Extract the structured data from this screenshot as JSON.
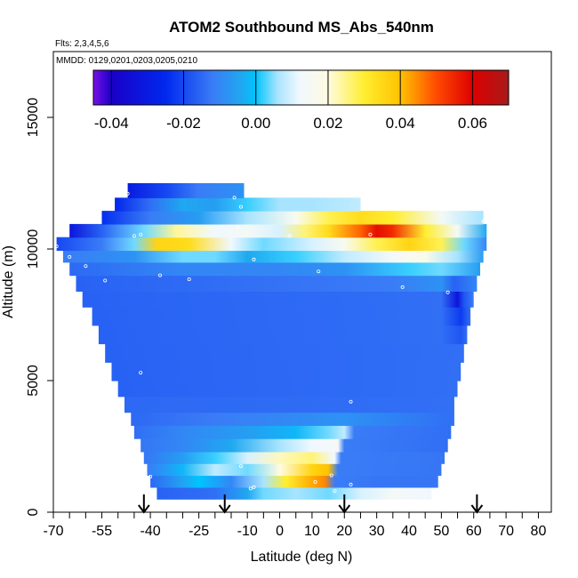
{
  "chart_data": {
    "type": "heatmap",
    "title": "ATOM2 Southbound MS_Abs_540nm",
    "flights_note": "Flts: 2,3,4,5,6",
    "dates_note": "MMDD: 0129,0201,0203,0205,0210",
    "xlabel": "Latitude (deg N)",
    "ylabel": "Altitude (m)",
    "xlim": [
      -70,
      84
    ],
    "ylim": [
      0,
      17500
    ],
    "x_ticks": [
      -70,
      -55,
      -40,
      -25,
      -10,
      0,
      10,
      20,
      30,
      40,
      50,
      60,
      70,
      80
    ],
    "x_minor_ticks": [
      -65,
      -60,
      -50,
      -45,
      -35,
      -30,
      -20,
      -15,
      -5,
      5,
      15,
      25,
      35,
      45,
      55,
      65,
      75
    ],
    "y_ticks": [
      0,
      5000,
      10000,
      15000
    ],
    "colorbar": {
      "min": -0.045,
      "max": 0.07,
      "ticks": [
        -0.04,
        -0.02,
        0.0,
        0.02,
        0.04,
        0.06
      ],
      "tick_labels": [
        "-0.04",
        "-0.02",
        "0.00",
        "0.02",
        "0.04",
        "0.06"
      ],
      "stops": [
        {
          "value": -0.045,
          "color": "#7a10e8"
        },
        {
          "value": -0.04,
          "color": "#1a00c8"
        },
        {
          "value": -0.025,
          "color": "#0028ee"
        },
        {
          "value": -0.012,
          "color": "#3a7cf6"
        },
        {
          "value": -0.004,
          "color": "#1fa8f0"
        },
        {
          "value": 0.0,
          "color": "#00c4ff"
        },
        {
          "value": 0.006,
          "color": "#a8e4ff"
        },
        {
          "value": 0.012,
          "color": "#f0f8ff"
        },
        {
          "value": 0.02,
          "color": "#fffbe0"
        },
        {
          "value": 0.03,
          "color": "#ffee30"
        },
        {
          "value": 0.04,
          "color": "#ffc200"
        },
        {
          "value": 0.05,
          "color": "#ff4a00"
        },
        {
          "value": 0.06,
          "color": "#dd0000"
        },
        {
          "value": 0.07,
          "color": "#a81a1a"
        }
      ]
    },
    "background_value": -0.014,
    "arrows_lat": [
      -42,
      -17,
      20,
      61
    ],
    "bands": [
      {
        "alt_low": 0,
        "alt_high": 500,
        "lat_min": 0,
        "lat_max": 0,
        "segments": []
      },
      {
        "alt_low": 500,
        "alt_high": 950,
        "lat_min": -38,
        "lat_max": 47,
        "segments": [
          {
            "lat": -38,
            "value": -0.016
          },
          {
            "lat": -20,
            "value": -0.014
          },
          {
            "lat": -10,
            "value": -0.004
          },
          {
            "lat": -5,
            "value": 0.004
          },
          {
            "lat": 5,
            "value": 0.006
          },
          {
            "lat": 15,
            "value": 0.004
          },
          {
            "lat": 25,
            "value": 0.01
          },
          {
            "lat": 35,
            "value": 0.014
          },
          {
            "lat": 47,
            "value": 0.012
          }
        ]
      },
      {
        "alt_low": 950,
        "alt_high": 1400,
        "lat_min": -40,
        "lat_max": 49,
        "segments": [
          {
            "lat": -40,
            "value": -0.015
          },
          {
            "lat": -30,
            "value": -0.005
          },
          {
            "lat": -25,
            "value": 0.0
          },
          {
            "lat": -15,
            "value": -0.01
          },
          {
            "lat": -5,
            "value": 0.006
          },
          {
            "lat": 2,
            "value": 0.03
          },
          {
            "lat": 10,
            "value": 0.042
          },
          {
            "lat": 14,
            "value": 0.045
          },
          {
            "lat": 17,
            "value": -0.012
          },
          {
            "lat": 30,
            "value": -0.013
          },
          {
            "lat": 49,
            "value": -0.013
          }
        ]
      },
      {
        "alt_low": 1400,
        "alt_high": 1850,
        "lat_min": -41,
        "lat_max": 50,
        "segments": [
          {
            "lat": -41,
            "value": -0.012
          },
          {
            "lat": -30,
            "value": -0.002
          },
          {
            "lat": -20,
            "value": 0.008
          },
          {
            "lat": -10,
            "value": 0.004
          },
          {
            "lat": 0,
            "value": 0.02
          },
          {
            "lat": 10,
            "value": 0.036
          },
          {
            "lat": 15,
            "value": 0.04
          },
          {
            "lat": 18,
            "value": -0.012
          },
          {
            "lat": 50,
            "value": -0.013
          }
        ]
      },
      {
        "alt_low": 1850,
        "alt_high": 2300,
        "lat_min": -42,
        "lat_max": 51,
        "segments": [
          {
            "lat": -42,
            "value": -0.013
          },
          {
            "lat": -30,
            "value": -0.006
          },
          {
            "lat": -20,
            "value": 0.002
          },
          {
            "lat": -10,
            "value": 0.01
          },
          {
            "lat": 0,
            "value": 0.022
          },
          {
            "lat": 10,
            "value": 0.026
          },
          {
            "lat": 17,
            "value": 0.012
          },
          {
            "lat": 19,
            "value": -0.012
          },
          {
            "lat": 51,
            "value": -0.013
          }
        ]
      },
      {
        "alt_low": 2300,
        "alt_high": 2800,
        "lat_min": -43,
        "lat_max": 52,
        "segments": [
          {
            "lat": -43,
            "value": -0.013
          },
          {
            "lat": -30,
            "value": -0.01
          },
          {
            "lat": -15,
            "value": -0.004
          },
          {
            "lat": 0,
            "value": 0.006
          },
          {
            "lat": 10,
            "value": 0.012
          },
          {
            "lat": 18,
            "value": 0.014
          },
          {
            "lat": 20,
            "value": -0.012
          },
          {
            "lat": 52,
            "value": -0.014
          }
        ]
      },
      {
        "alt_low": 2800,
        "alt_high": 3300,
        "lat_min": -45,
        "lat_max": 53,
        "segments": [
          {
            "lat": -45,
            "value": -0.014
          },
          {
            "lat": -30,
            "value": -0.01
          },
          {
            "lat": -10,
            "value": -0.006
          },
          {
            "lat": 5,
            "value": -0.002
          },
          {
            "lat": 15,
            "value": 0.004
          },
          {
            "lat": 20,
            "value": 0.008
          },
          {
            "lat": 23,
            "value": -0.012
          },
          {
            "lat": 53,
            "value": -0.014
          }
        ]
      },
      {
        "alt_low": 3300,
        "alt_high": 3800,
        "lat_min": -46,
        "lat_max": 54,
        "segments": [
          {
            "lat": -46,
            "value": -0.015
          },
          {
            "lat": -20,
            "value": -0.012
          },
          {
            "lat": 0,
            "value": -0.01
          },
          {
            "lat": 20,
            "value": -0.008
          },
          {
            "lat": 54,
            "value": -0.014
          }
        ]
      },
      {
        "alt_low": 3800,
        "alt_high": 4400,
        "lat_min": -48,
        "lat_max": 54,
        "segments": [
          {
            "lat": -48,
            "value": -0.015
          },
          {
            "lat": 54,
            "value": -0.014
          }
        ]
      },
      {
        "alt_low": 4400,
        "alt_high": 5000,
        "lat_min": -50,
        "lat_max": 55,
        "segments": [
          {
            "lat": -50,
            "value": -0.016
          },
          {
            "lat": 55,
            "value": -0.014
          }
        ]
      },
      {
        "alt_low": 5000,
        "alt_high": 5700,
        "lat_min": -52,
        "lat_max": 56,
        "segments": [
          {
            "lat": -52,
            "value": -0.016
          },
          {
            "lat": 56,
            "value": -0.014
          }
        ]
      },
      {
        "alt_low": 5700,
        "alt_high": 6400,
        "lat_min": -54,
        "lat_max": 57,
        "segments": [
          {
            "lat": -54,
            "value": -0.016
          },
          {
            "lat": 57,
            "value": -0.014
          }
        ]
      },
      {
        "alt_low": 6400,
        "alt_high": 7100,
        "lat_min": -56,
        "lat_max": 58,
        "segments": [
          {
            "lat": -56,
            "value": -0.016
          },
          {
            "lat": 50,
            "value": -0.014
          },
          {
            "lat": 56,
            "value": -0.018
          },
          {
            "lat": 58,
            "value": -0.014
          }
        ]
      },
      {
        "alt_low": 7100,
        "alt_high": 7800,
        "lat_min": -58,
        "lat_max": 59,
        "segments": [
          {
            "lat": -58,
            "value": -0.016
          },
          {
            "lat": 50,
            "value": -0.014
          },
          {
            "lat": 56,
            "value": -0.022
          },
          {
            "lat": 59,
            "value": -0.014
          }
        ]
      },
      {
        "alt_low": 7800,
        "alt_high": 8400,
        "lat_min": -61,
        "lat_max": 60,
        "segments": [
          {
            "lat": -61,
            "value": -0.016
          },
          {
            "lat": 50,
            "value": -0.014
          },
          {
            "lat": 55,
            "value": -0.032
          },
          {
            "lat": 57,
            "value": -0.018
          },
          {
            "lat": 60,
            "value": -0.012
          }
        ]
      },
      {
        "alt_low": 8400,
        "alt_high": 9000,
        "lat_min": -63,
        "lat_max": 61,
        "segments": [
          {
            "lat": -63,
            "value": -0.016
          },
          {
            "lat": 35,
            "value": -0.012
          },
          {
            "lat": 50,
            "value": -0.008
          },
          {
            "lat": 54,
            "value": -0.016
          },
          {
            "lat": 61,
            "value": -0.01
          }
        ]
      },
      {
        "alt_low": 9000,
        "alt_high": 9500,
        "lat_min": -65,
        "lat_max": 62,
        "segments": [
          {
            "lat": -65,
            "value": -0.015
          },
          {
            "lat": -30,
            "value": -0.01
          },
          {
            "lat": 0,
            "value": -0.01
          },
          {
            "lat": 20,
            "value": -0.008
          },
          {
            "lat": 40,
            "value": 0.002
          },
          {
            "lat": 50,
            "value": 0.004
          },
          {
            "lat": 62,
            "value": -0.006
          }
        ]
      },
      {
        "alt_low": 9500,
        "alt_high": 9950,
        "lat_min": -67,
        "lat_max": 63,
        "segments": [
          {
            "lat": -67,
            "value": -0.012
          },
          {
            "lat": -45,
            "value": -0.008
          },
          {
            "lat": -30,
            "value": 0.004
          },
          {
            "lat": -20,
            "value": 0.004
          },
          {
            "lat": -10,
            "value": -0.004
          },
          {
            "lat": 5,
            "value": 0.002
          },
          {
            "lat": 20,
            "value": 0.008
          },
          {
            "lat": 35,
            "value": 0.014
          },
          {
            "lat": 45,
            "value": 0.018
          },
          {
            "lat": 55,
            "value": 0.006
          },
          {
            "lat": 63,
            "value": -0.006
          }
        ]
      },
      {
        "alt_low": 9950,
        "alt_high": 10450,
        "lat_min": -69,
        "lat_max": 64,
        "segments": [
          {
            "lat": -69,
            "value": -0.02
          },
          {
            "lat": -55,
            "value": -0.012
          },
          {
            "lat": -45,
            "value": 0.004
          },
          {
            "lat": -38,
            "value": 0.036
          },
          {
            "lat": -28,
            "value": 0.034
          },
          {
            "lat": -15,
            "value": 0.012
          },
          {
            "lat": -5,
            "value": 0.004
          },
          {
            "lat": 10,
            "value": 0.01
          },
          {
            "lat": 20,
            "value": 0.016
          },
          {
            "lat": 30,
            "value": 0.028
          },
          {
            "lat": 40,
            "value": 0.036
          },
          {
            "lat": 50,
            "value": 0.028
          },
          {
            "lat": 57,
            "value": 0.004
          },
          {
            "lat": 64,
            "value": -0.01
          }
        ]
      },
      {
        "alt_low": 10450,
        "alt_high": 10950,
        "lat_min": -65,
        "lat_max": 64,
        "segments": [
          {
            "lat": -65,
            "value": -0.032
          },
          {
            "lat": -55,
            "value": -0.016
          },
          {
            "lat": -42,
            "value": 0.004
          },
          {
            "lat": -32,
            "value": 0.024
          },
          {
            "lat": -20,
            "value": 0.012
          },
          {
            "lat": -10,
            "value": 0.014
          },
          {
            "lat": 0,
            "value": 0.01
          },
          {
            "lat": 8,
            "value": 0.026
          },
          {
            "lat": 15,
            "value": 0.034
          },
          {
            "lat": 25,
            "value": 0.048
          },
          {
            "lat": 30,
            "value": 0.058
          },
          {
            "lat": 35,
            "value": 0.054
          },
          {
            "lat": 45,
            "value": 0.03
          },
          {
            "lat": 55,
            "value": 0.014
          },
          {
            "lat": 64,
            "value": -0.004
          }
        ]
      },
      {
        "alt_low": 10950,
        "alt_high": 11450,
        "lat_min": -55,
        "lat_max": 63,
        "segments": [
          {
            "lat": -55,
            "value": -0.024
          },
          {
            "lat": -40,
            "value": -0.012
          },
          {
            "lat": -25,
            "value": -0.006
          },
          {
            "lat": -10,
            "value": 0.006
          },
          {
            "lat": 5,
            "value": 0.016
          },
          {
            "lat": 15,
            "value": 0.028
          },
          {
            "lat": 25,
            "value": 0.034
          },
          {
            "lat": 35,
            "value": 0.03
          },
          {
            "lat": 50,
            "value": 0.014
          },
          {
            "lat": 63,
            "value": 0.006
          }
        ]
      },
      {
        "alt_low": 11450,
        "alt_high": 11950,
        "lat_min": -51,
        "lat_max": 25,
        "segments": [
          {
            "lat": -51,
            "value": -0.026
          },
          {
            "lat": -40,
            "value": -0.014
          },
          {
            "lat": -30,
            "value": -0.004
          },
          {
            "lat": -20,
            "value": -0.006
          },
          {
            "lat": -10,
            "value": 0.002
          },
          {
            "lat": 0,
            "value": 0.006
          },
          {
            "lat": 10,
            "value": 0.006
          },
          {
            "lat": 25,
            "value": 0.008
          }
        ]
      },
      {
        "alt_low": 11950,
        "alt_high": 12500,
        "lat_min": -47,
        "lat_max": -11,
        "segments": [
          {
            "lat": -47,
            "value": -0.03
          },
          {
            "lat": -35,
            "value": -0.02
          },
          {
            "lat": -25,
            "value": -0.012
          },
          {
            "lat": -11,
            "value": -0.008
          }
        ]
      }
    ],
    "points": [
      {
        "lat": -47,
        "alt": 12100
      },
      {
        "lat": -14,
        "alt": 11950
      },
      {
        "lat": -12,
        "alt": 11600
      },
      {
        "lat": 63,
        "alt": 11050
      },
      {
        "lat": -13,
        "alt": 10850
      },
      {
        "lat": -43,
        "alt": 10550
      },
      {
        "lat": -45,
        "alt": 10500
      },
      {
        "lat": 3,
        "alt": 10500
      },
      {
        "lat": 28,
        "alt": 10550
      },
      {
        "lat": -69,
        "alt": 10100
      },
      {
        "lat": -65,
        "alt": 9700
      },
      {
        "lat": -8,
        "alt": 9600
      },
      {
        "lat": -60,
        "alt": 9350
      },
      {
        "lat": -37,
        "alt": 9000
      },
      {
        "lat": 12,
        "alt": 9150
      },
      {
        "lat": -68,
        "alt": 8950
      },
      {
        "lat": -54,
        "alt": 8800
      },
      {
        "lat": -28,
        "alt": 8850
      },
      {
        "lat": 38,
        "alt": 8550
      },
      {
        "lat": 52,
        "alt": 8350
      },
      {
        "lat": -61,
        "alt": 7250
      },
      {
        "lat": -43,
        "alt": 5300
      },
      {
        "lat": 22,
        "alt": 4200
      },
      {
        "lat": -12,
        "alt": 1750
      },
      {
        "lat": 59,
        "alt": 2350
      },
      {
        "lat": 16,
        "alt": 1400
      },
      {
        "lat": -40,
        "alt": 1350
      },
      {
        "lat": 11,
        "alt": 1150
      },
      {
        "lat": 22,
        "alt": 1050
      },
      {
        "lat": -8,
        "alt": 950
      },
      {
        "lat": 17,
        "alt": 800
      },
      {
        "lat": -9,
        "alt": 900
      }
    ]
  }
}
